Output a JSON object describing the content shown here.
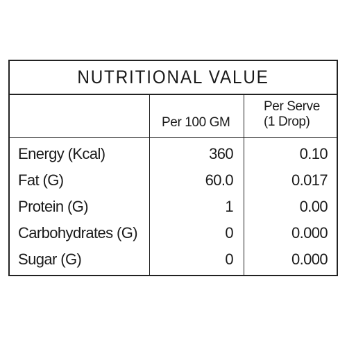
{
  "table": {
    "title": "NUTRITIONAL  VALUE",
    "headers": {
      "nutrient": "",
      "per_100": "Per 100 GM",
      "per_serve_line1": "Per Serve",
      "per_serve_line2": "(1 Drop)"
    },
    "rows": [
      {
        "label": "Energy (Kcal)",
        "per_100": "360",
        "per_serve": "0.10"
      },
      {
        "label": "Fat (G)",
        "per_100": "60.0",
        "per_serve": "0.017"
      },
      {
        "label": "Protein (G)",
        "per_100": "1",
        "per_serve": "0.00"
      },
      {
        "label": "Carbohydrates (G)",
        "per_100": "0",
        "per_serve": "0.000"
      },
      {
        "label": "Sugar (G)",
        "per_100": "0",
        "per_serve": "0.000"
      }
    ]
  },
  "colors": {
    "border": "#222222",
    "text": "#1a1a1a",
    "background": "#ffffff"
  }
}
